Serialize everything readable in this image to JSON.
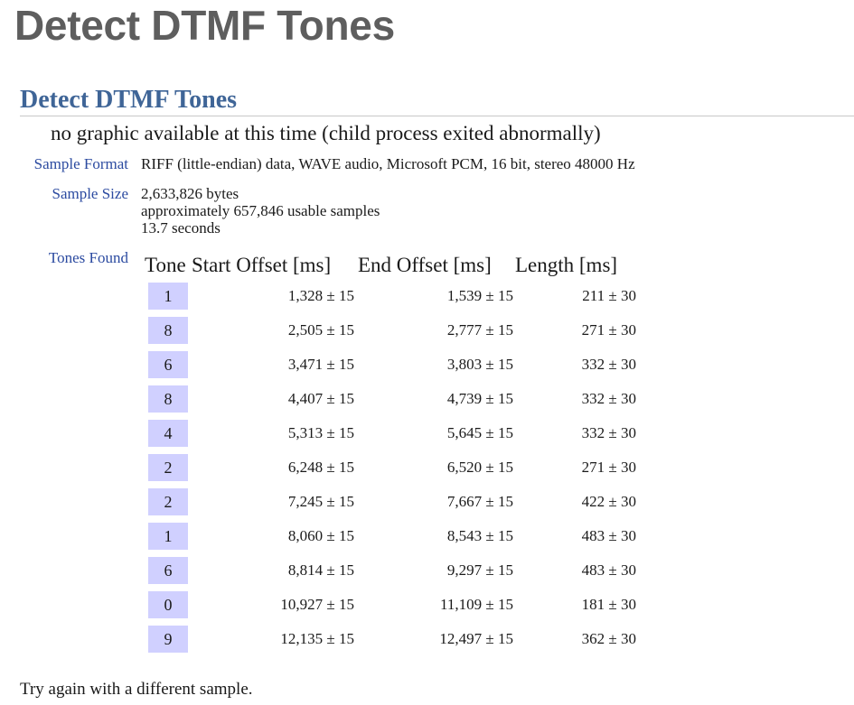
{
  "site_title": "Detect DTMF Tones",
  "section_title": "Detect DTMF Tones",
  "no_graphic_message": "no graphic available at this time (child process exited abnormally)",
  "sample_format": {
    "label": "Sample Format",
    "value": "RIFF (little-endian) data, WAVE audio, Microsoft PCM, 16 bit, stereo 48000 Hz"
  },
  "sample_size": {
    "label": "Sample Size",
    "lines": [
      "2,633,826 bytes",
      "approximately 657,846 usable samples",
      "13.7 seconds"
    ]
  },
  "tones_found": {
    "label": "Tones Found",
    "headers": [
      "Tone",
      "Start Offset [ms]",
      "End Offset [ms]",
      "Length [ms]"
    ],
    "rows": [
      {
        "tone": "1",
        "start": "1,328 ± 15",
        "end": "1,539 ± 15",
        "length": "211 ± 30"
      },
      {
        "tone": "8",
        "start": "2,505 ± 15",
        "end": "2,777 ± 15",
        "length": "271 ± 30"
      },
      {
        "tone": "6",
        "start": "3,471 ± 15",
        "end": "3,803 ± 15",
        "length": "332 ± 30"
      },
      {
        "tone": "8",
        "start": "4,407 ± 15",
        "end": "4,739 ± 15",
        "length": "332 ± 30"
      },
      {
        "tone": "4",
        "start": "5,313 ± 15",
        "end": "5,645 ± 15",
        "length": "332 ± 30"
      },
      {
        "tone": "2",
        "start": "6,248 ± 15",
        "end": "6,520 ± 15",
        "length": "271 ± 30"
      },
      {
        "tone": "2",
        "start": "7,245 ± 15",
        "end": "7,667 ± 15",
        "length": "422 ± 30"
      },
      {
        "tone": "1",
        "start": "8,060 ± 15",
        "end": "8,543 ± 15",
        "length": "483 ± 30"
      },
      {
        "tone": "6",
        "start": "8,814 ± 15",
        "end": "9,297 ± 15",
        "length": "483 ± 30"
      },
      {
        "tone": "0",
        "start": "10,927 ± 15",
        "end": "11,109 ± 15",
        "length": "181 ± 30"
      },
      {
        "tone": "9",
        "start": "12,135 ± 15",
        "end": "12,497 ± 15",
        "length": "362 ± 30"
      }
    ]
  },
  "try_again": "Try again with a different sample.",
  "colors": {
    "site_title": "#5e5e5e",
    "section_title": "#3f6597",
    "label": "#2b4aa0",
    "tone_box": "#d0d0ff"
  }
}
